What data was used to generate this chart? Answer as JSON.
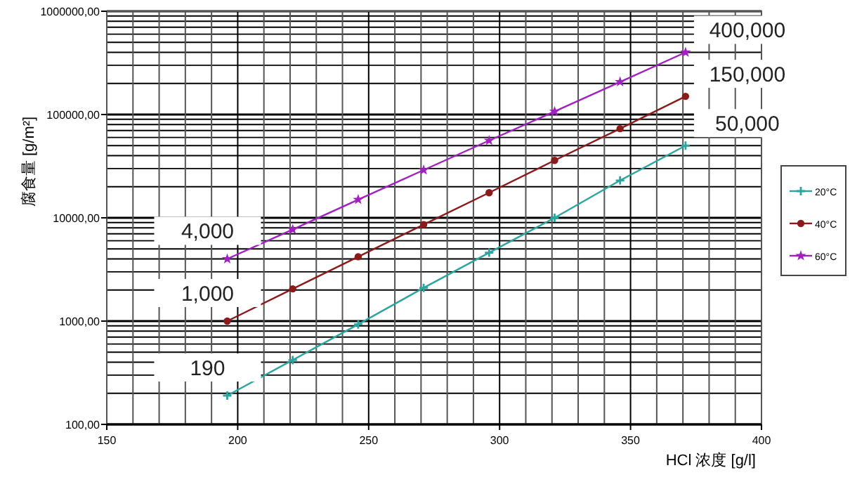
{
  "chart_data": {
    "type": "line",
    "xlabel": "HCl 浓度 [g/l]",
    "ylabel": "腐食量 [g/m²]",
    "x": [
      196,
      221,
      246,
      271,
      296,
      321,
      346,
      371
    ],
    "xlim": [
      150,
      400
    ],
    "xticks": [
      150,
      200,
      250,
      300,
      350,
      400
    ],
    "ylim": [
      100,
      1000000
    ],
    "yticks": [
      {
        "value": 100,
        "label": "100,00"
      },
      {
        "value": 1000,
        "label": "1000,00"
      },
      {
        "value": 10000,
        "label": "10000,00"
      },
      {
        "value": 100000,
        "label": "100000,00"
      },
      {
        "value": 1000000,
        "label": "1000000,00"
      }
    ],
    "log": "y",
    "grid": true,
    "legend": "right",
    "series": [
      {
        "name": "20°C",
        "color": "#2aa5a0",
        "marker": "cross",
        "values": [
          190,
          420,
          930,
          2100,
          4600,
          10000,
          23000,
          50000
        ],
        "value_labels": [
          "190",
          null,
          null,
          null,
          null,
          null,
          null,
          "50,000"
        ]
      },
      {
        "name": "40°C",
        "color": "#8b1a1a",
        "marker": "circle",
        "values": [
          1000,
          2050,
          4200,
          8600,
          17500,
          36000,
          73000,
          150000
        ],
        "value_labels": [
          "1,000",
          null,
          null,
          null,
          null,
          null,
          null,
          "150,000"
        ]
      },
      {
        "name": "60°C",
        "color": "#a020c0",
        "marker": "star",
        "values": [
          4000,
          7700,
          15000,
          29000,
          56000,
          107000,
          207000,
          400000
        ],
        "value_labels": [
          "4,000",
          null,
          null,
          null,
          null,
          null,
          null,
          "400,000"
        ]
      }
    ]
  }
}
